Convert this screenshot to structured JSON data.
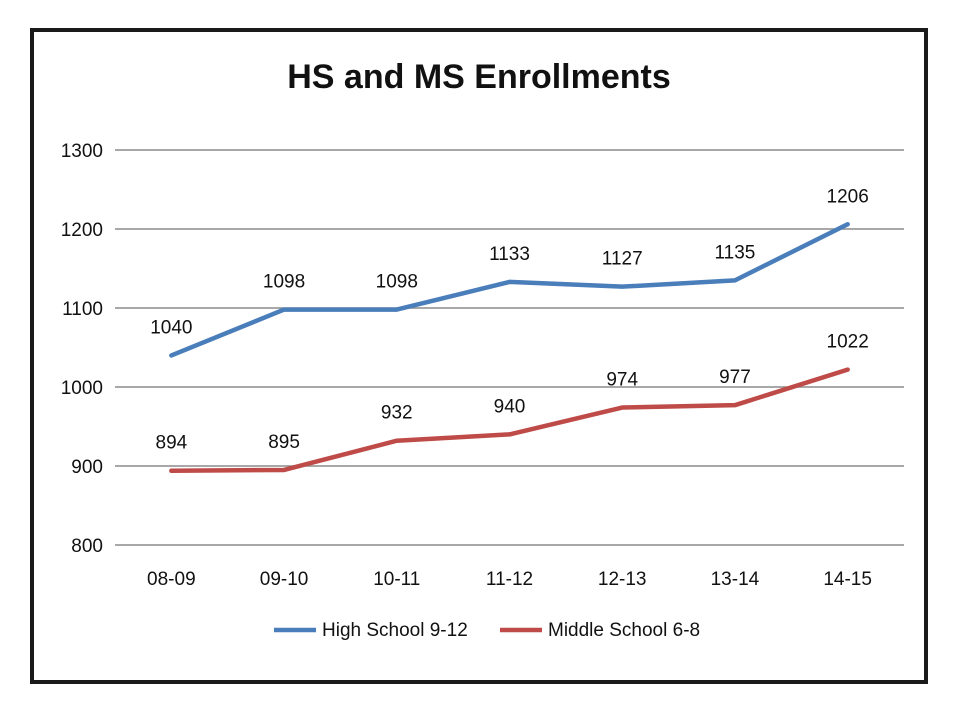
{
  "chart_data": {
    "type": "line",
    "title": "HS and MS Enrollments",
    "xlabel": "",
    "ylabel": "",
    "categories": [
      "08-09",
      "09-10",
      "10-11",
      "11-12",
      "12-13",
      "13-14",
      "14-15"
    ],
    "ylim": [
      800,
      1300
    ],
    "yticks": [
      "1300",
      "1200",
      "1100",
      "1000",
      "900",
      "800"
    ],
    "grid": true,
    "legend_position": "bottom",
    "series": [
      {
        "name": "High School 9-12",
        "color": "#4a7ebb",
        "values": [
          1040,
          1098,
          1098,
          1133,
          1127,
          1135,
          1206
        ]
      },
      {
        "name": "Middle School 6-8",
        "color": "#be4b48",
        "values": [
          894,
          895,
          932,
          940,
          974,
          977,
          1022
        ]
      }
    ]
  }
}
